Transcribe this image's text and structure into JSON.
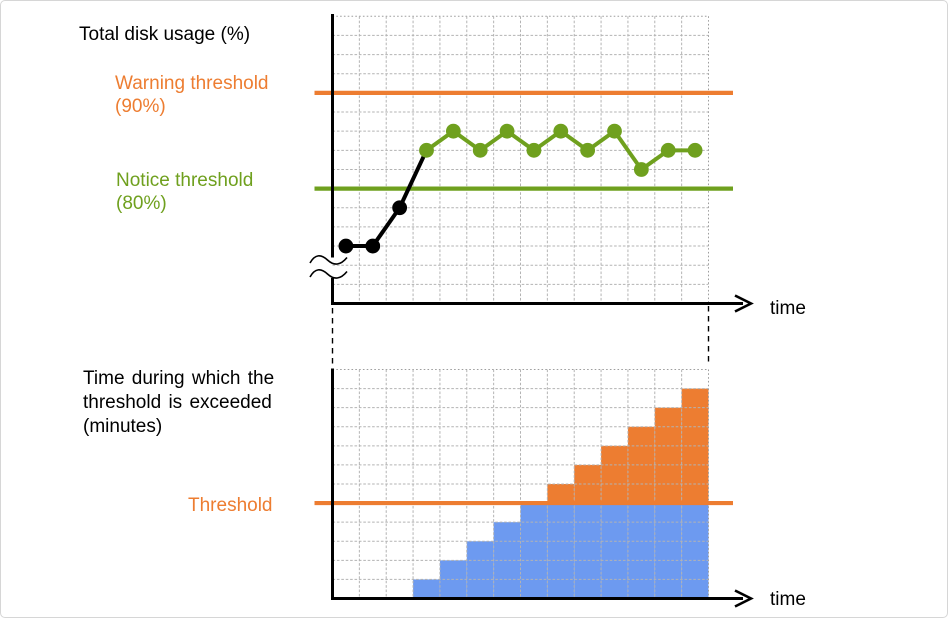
{
  "colors": {
    "warning_orange": "#ED7D31",
    "notice_green": "#6FA01E",
    "bar_blue": "#6D9AF0",
    "bar_orange": "#ED7D31",
    "grid_gray": "#B3B3B3",
    "boundary_gray": "#9E9E9E",
    "axis_black": "#000000"
  },
  "top_chart": {
    "title": "Total disk usage (%)",
    "warning_label": {
      "line1": "Warning threshold",
      "line2": "(90%)"
    },
    "notice_label": {
      "line1": "Notice threshold",
      "line2": "(80%)"
    },
    "time_label": "time"
  },
  "bottom_chart": {
    "label": {
      "line1": "Time during which the",
      "line2": "threshold is exceeded",
      "line3": "(minutes)"
    },
    "threshold_label": "Threshold",
    "time_label": "time"
  },
  "chart_data": [
    {
      "type": "line",
      "title": "Total disk usage (%)",
      "xlabel": "time",
      "ylabel": "Total disk usage (%)",
      "x": [
        1,
        2,
        3,
        4,
        5,
        6,
        7,
        8,
        9,
        10,
        11,
        12,
        13,
        14
      ],
      "values_percent": [
        74,
        74,
        78,
        84,
        86,
        84,
        86,
        84,
        86,
        84,
        86,
        82,
        84,
        84
      ],
      "point_colors": [
        "black",
        "black",
        "black",
        "green",
        "green",
        "green",
        "green",
        "green",
        "green",
        "green",
        "green",
        "green",
        "green",
        "green"
      ],
      "thresholds": [
        {
          "name": "Warning threshold",
          "value": 90,
          "color": "#ED7D31"
        },
        {
          "name": "Notice threshold",
          "value": 80,
          "color": "#6FA01E"
        }
      ],
      "y_axis_break": true,
      "grid": true,
      "legend": "none"
    },
    {
      "type": "bar",
      "title": "Time during which the threshold is exceeded (minutes)",
      "xlabel": "time",
      "categories": [
        1,
        2,
        3,
        4,
        5,
        6,
        7,
        8,
        9,
        10,
        11,
        12,
        13,
        14
      ],
      "values": [
        0,
        0,
        0,
        1,
        2,
        3,
        4,
        5,
        6,
        7,
        8,
        9,
        10,
        11
      ],
      "threshold": {
        "name": "Threshold",
        "value": 5,
        "color": "#ED7D31"
      },
      "stack_colors": {
        "below_threshold": "#6D9AF0",
        "above_threshold": "#ED7D31"
      },
      "ylim": [
        0,
        12
      ],
      "grid": true,
      "legend": "none"
    }
  ]
}
